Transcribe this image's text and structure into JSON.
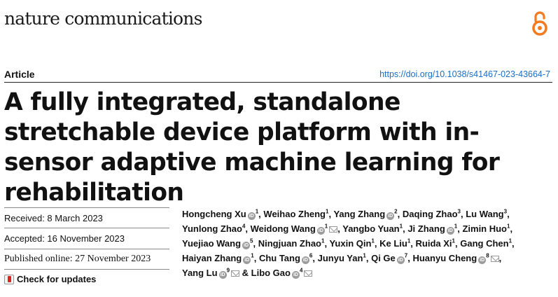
{
  "journal": {
    "name": "nature communications"
  },
  "article": {
    "type": "Article",
    "doi": "https://doi.org/10.1038/s41467-023-43664-7",
    "title": "A fully integrated, standalone stretchable device platform with in-sensor adaptive machine learning for rehabilitation"
  },
  "dates": {
    "received": "Received: 8 March 2023",
    "accepted": "Accepted: 16 November 2023",
    "published": "Published online: 27 November 2023"
  },
  "check_updates": {
    "label": "Check for updates"
  },
  "authors": [
    {
      "name": "Hongcheng Xu",
      "orcid": true,
      "aff": "1",
      "email": false,
      "sep": ", "
    },
    {
      "name": "Weihao Zheng",
      "orcid": false,
      "aff": "1",
      "email": false,
      "sep": ", "
    },
    {
      "name": "Yang Zhang",
      "orcid": true,
      "aff": "2",
      "email": false,
      "sep": ", "
    },
    {
      "name": "Daqing Zhao",
      "orcid": false,
      "aff": "3",
      "email": false,
      "sep": ", "
    },
    {
      "name": "Lu Wang",
      "orcid": false,
      "aff": "3",
      "email": false,
      "sep": ", "
    },
    {
      "name": "Yunlong Zhao",
      "orcid": false,
      "aff": "4",
      "email": false,
      "sep": ", "
    },
    {
      "name": "Weidong Wang",
      "orcid": true,
      "aff": "1",
      "email": true,
      "sep": ", "
    },
    {
      "name": "Yangbo Yuan",
      "orcid": false,
      "aff": "1",
      "email": false,
      "sep": ", "
    },
    {
      "name": "Ji Zhang",
      "orcid": true,
      "aff": "1",
      "email": false,
      "sep": ", "
    },
    {
      "name": "Zimin Huo",
      "orcid": false,
      "aff": "1",
      "email": false,
      "sep": ", "
    },
    {
      "name": "Yuejiao Wang",
      "orcid": true,
      "aff": "5",
      "email": false,
      "sep": ", "
    },
    {
      "name": "Ningjuan Zhao",
      "orcid": false,
      "aff": "1",
      "email": false,
      "sep": ", "
    },
    {
      "name": "Yuxin Qin",
      "orcid": false,
      "aff": "1",
      "email": false,
      "sep": ", "
    },
    {
      "name": "Ke Liu",
      "orcid": false,
      "aff": "1",
      "email": false,
      "sep": ", "
    },
    {
      "name": "Ruida Xi",
      "orcid": false,
      "aff": "1",
      "email": false,
      "sep": ", "
    },
    {
      "name": "Gang Chen",
      "orcid": false,
      "aff": "1",
      "email": false,
      "sep": ", "
    },
    {
      "name": "Haiyan Zhang",
      "orcid": true,
      "aff": "1",
      "email": false,
      "sep": ", "
    },
    {
      "name": "Chu Tang",
      "orcid": true,
      "aff": "6",
      "email": false,
      "sep": ", "
    },
    {
      "name": "Junyu Yan",
      "orcid": false,
      "aff": "1",
      "email": false,
      "sep": ", "
    },
    {
      "name": "Qi Ge",
      "orcid": true,
      "aff": "7",
      "email": false,
      "sep": ", "
    },
    {
      "name": "Huanyu Cheng",
      "orcid": true,
      "aff": "8",
      "email": true,
      "sep": ", "
    },
    {
      "name": "Yang Lu",
      "orcid": true,
      "aff": "9",
      "email": true,
      "sep": " & "
    },
    {
      "name": "Libo Gao",
      "orcid": true,
      "aff": "4",
      "email": true,
      "sep": ""
    }
  ]
}
